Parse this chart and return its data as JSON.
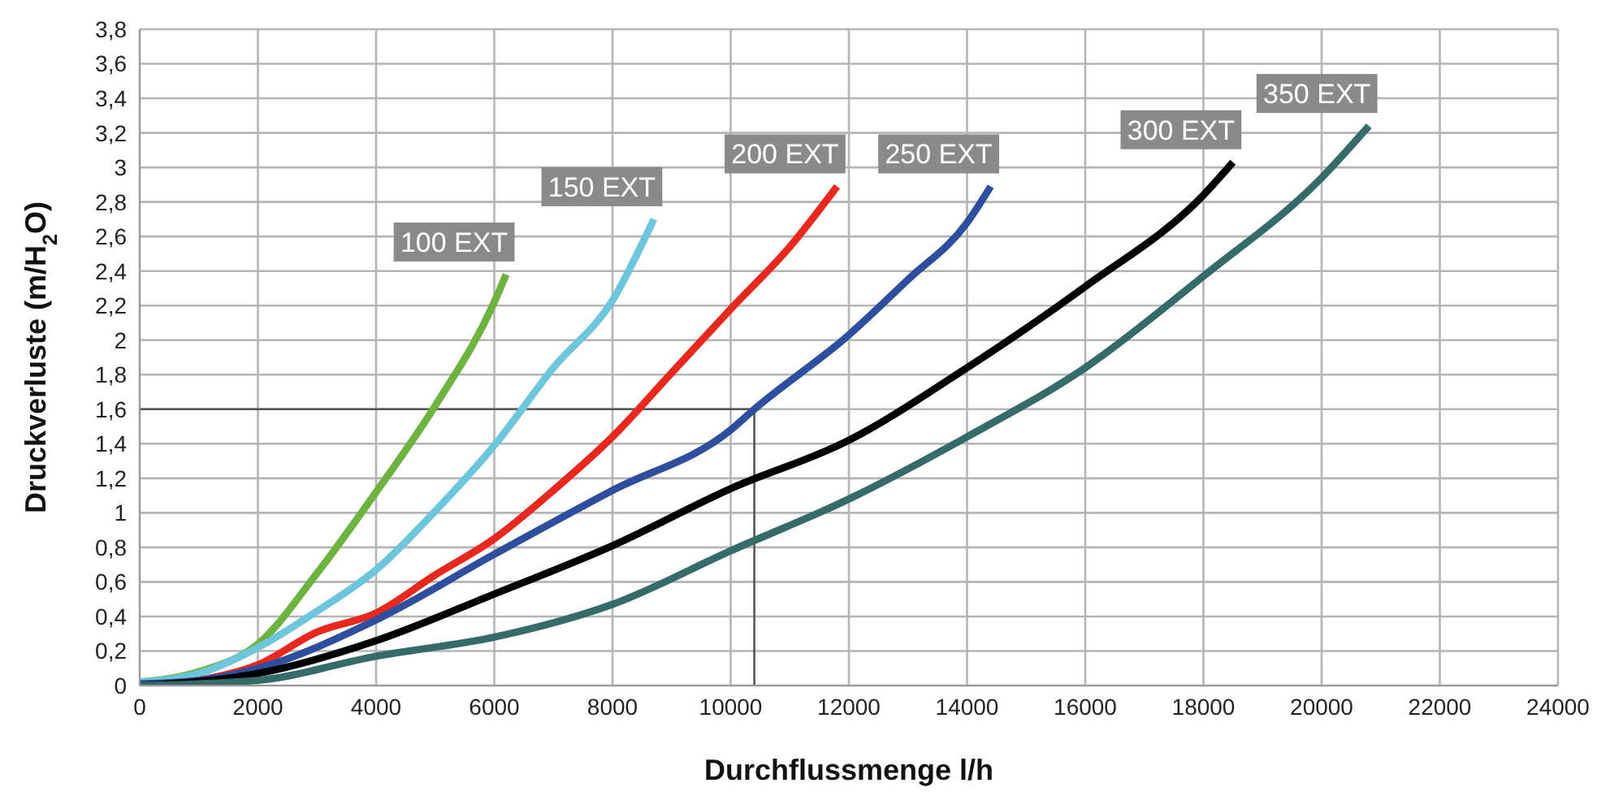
{
  "chart_data": {
    "type": "line",
    "xlabel": "Durchflussmenge  l/h",
    "ylabel": "Druckverluste  (m/H$_{2}$O)",
    "xlim": [
      0,
      24000
    ],
    "xticks": [
      0,
      2000,
      4000,
      6000,
      8000,
      10000,
      12000,
      14000,
      16000,
      18000,
      20000,
      22000,
      24000
    ],
    "ylim": [
      0,
      3.8
    ],
    "yticks": [
      0,
      {
        "value": 0.2,
        "label": "0,2"
      },
      {
        "value": 0.4,
        "label": "0,4"
      },
      {
        "value": 0.6,
        "label": "0,6"
      },
      {
        "value": 0.8,
        "label": "0,8"
      },
      1,
      {
        "value": 1.2,
        "label": "1,2"
      },
      {
        "value": 1.4,
        "label": "1,4"
      },
      {
        "value": 1.6,
        "label": "1,6"
      },
      {
        "value": 1.8,
        "label": "1,8"
      },
      2,
      {
        "value": 2.2,
        "label": "2,2"
      },
      {
        "value": 2.4,
        "label": "2,4"
      },
      {
        "value": 2.6,
        "label": "2,6"
      },
      {
        "value": 2.8,
        "label": "2,8"
      },
      3,
      {
        "value": 3.2,
        "label": "3,2"
      },
      {
        "value": 3.4,
        "label": "3,4"
      },
      {
        "value": 3.6,
        "label": "3,6"
      },
      {
        "value": 3.8,
        "label": "3,8"
      }
    ],
    "grid": true,
    "legend": false,
    "marker": "none",
    "line_style": "solid",
    "ref_lines": [
      {
        "axis": "y",
        "value": 1.6,
        "color": "#555555"
      },
      {
        "axis": "x",
        "value": 10400,
        "color": "#555555"
      }
    ],
    "series": [
      {
        "name": "100 EXT",
        "color": "#6db33f",
        "x": [
          0,
          1000,
          2000,
          3000,
          4000,
          5000,
          6000,
          6200
        ],
        "values": [
          0.02,
          0.08,
          0.24,
          0.65,
          1.12,
          1.62,
          2.22,
          2.38
        ]
      },
      {
        "name": "150 EXT",
        "color": "#6ec6dc",
        "x": [
          0,
          1000,
          2000,
          3000,
          4000,
          5000,
          6000,
          7000,
          8000,
          8700
        ],
        "values": [
          0.02,
          0.07,
          0.22,
          0.43,
          0.67,
          1.01,
          1.39,
          1.84,
          2.23,
          2.7
        ]
      },
      {
        "name": "200 EXT",
        "color": "#e8281e",
        "x": [
          0,
          1000,
          2000,
          3000,
          4000,
          5000,
          6000,
          7000,
          8000,
          9000,
          10000,
          11000,
          11800
        ],
        "values": [
          0,
          0.03,
          0.12,
          0.31,
          0.42,
          0.64,
          0.85,
          1.13,
          1.44,
          1.81,
          2.18,
          2.54,
          2.89
        ]
      },
      {
        "name": "250 EXT",
        "color": "#2e4f9e",
        "x": [
          0,
          1000,
          2000,
          4000,
          6000,
          8000,
          10000,
          10400,
          12000,
          13000,
          14000,
          14400
        ],
        "values": [
          0.01,
          0.03,
          0.1,
          0.38,
          0.76,
          1.13,
          1.48,
          1.6,
          2.03,
          2.35,
          2.68,
          2.89
        ]
      },
      {
        "name": "300 EXT",
        "color": "#000000",
        "x": [
          0,
          2000,
          4000,
          6000,
          8000,
          10000,
          12000,
          14000,
          16000,
          18000,
          18500
        ],
        "values": [
          0,
          0.07,
          0.26,
          0.53,
          0.81,
          1.14,
          1.42,
          1.84,
          2.31,
          2.84,
          3.03
        ]
      },
      {
        "name": "350 EXT",
        "color": "#356b68",
        "x": [
          0,
          2000,
          4000,
          6000,
          8000,
          10000,
          12000,
          14000,
          16000,
          18000,
          20000,
          20800
        ],
        "values": [
          0,
          0.03,
          0.17,
          0.28,
          0.47,
          0.78,
          1.08,
          1.44,
          1.84,
          2.37,
          2.94,
          3.24
        ]
      }
    ]
  }
}
